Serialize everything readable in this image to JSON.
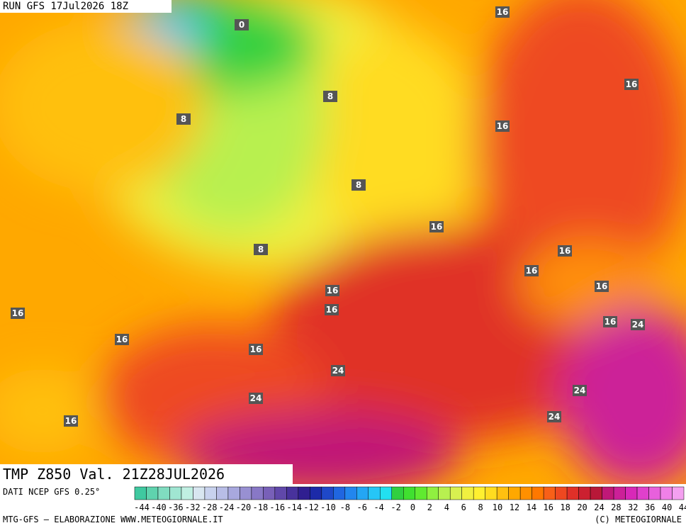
{
  "header": {
    "run": "RUN GFS 17Jul2026 18Z"
  },
  "map": {
    "field": "TMP Z850 Val. 21Z28JUL2026",
    "contour_labels": [
      16,
      0,
      8,
      16,
      8,
      16,
      8,
      16,
      8,
      16,
      16,
      16,
      16,
      16,
      16,
      16,
      24,
      16,
      16,
      24,
      24,
      24,
      24,
      16
    ]
  },
  "footer": {
    "source": "DATI NCEP GFS 0.25°",
    "credit": "MTG-GFS — ELABORAZIONE WWW.METEOGIORNALE.IT",
    "copyright": "(C) METEOGIORNALE"
  },
  "colorbar": {
    "labels": [
      -44,
      -40,
      -36,
      -32,
      -28,
      -24,
      -20,
      -18,
      -16,
      -14,
      -12,
      -10,
      -8,
      -6,
      -4,
      -2,
      0,
      2,
      4,
      6,
      8,
      10,
      12,
      14,
      16,
      18,
      20,
      24,
      28,
      32,
      36,
      40,
      44
    ],
    "colors": [
      "#3fc9a0",
      "#5fd3ae",
      "#80dcc0",
      "#a0e6d2",
      "#c0efe2",
      "#d8e6f0",
      "#c8d2ee",
      "#b8bde6",
      "#a8a8de",
      "#9890d2",
      "#8878c6",
      "#7860b8",
      "#6048aa",
      "#48329c",
      "#301f90",
      "#1c2aa8",
      "#1f48c8",
      "#2066e0",
      "#2286ee",
      "#24a6f4",
      "#26c6f6",
      "#22e0f0",
      "#30d040",
      "#40e030",
      "#60ea30",
      "#90f040",
      "#b8f050",
      "#d8f050",
      "#f0f040",
      "#fff030",
      "#ffdc20",
      "#ffc010",
      "#ffa800",
      "#ff9000",
      "#ff7800",
      "#f86018",
      "#ee4820",
      "#e03028",
      "#cc2030",
      "#b81838",
      "#c01878",
      "#cc2098",
      "#d828b8",
      "#e040cc",
      "#e860dc",
      "#f080e8",
      "#f4a0f0"
    ]
  }
}
